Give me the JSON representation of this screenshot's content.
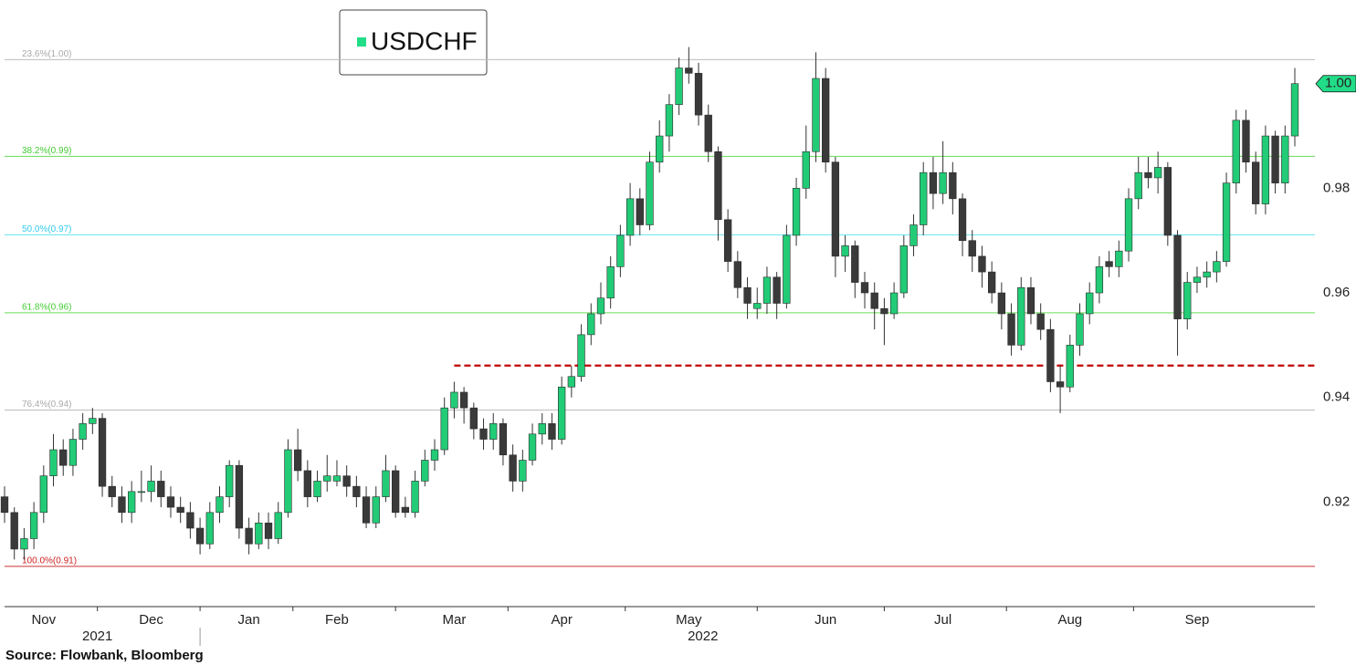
{
  "chart_data": {
    "type": "candlestick",
    "legend_label": "USDCHF",
    "legend_color": "#22dd88",
    "source": "Source: Flowbank, Bloomberg",
    "up_color": "#22cc77",
    "down_color": "#3a3a3a",
    "ylim": [
      0.9,
      1.016
    ],
    "yticks": [
      0.92,
      0.94,
      0.96,
      0.98
    ],
    "xlim": [
      -0.5,
      132.5
    ],
    "x_axis": [
      {
        "year": "2021",
        "ticks": [
          {
            "value": 4,
            "label": "Nov"
          },
          {
            "value": 15,
            "label": "Dec"
          }
        ]
      },
      {
        "year": "2022",
        "ticks": [
          {
            "value": 25,
            "label": "Jan"
          },
          {
            "value": 34,
            "label": "Feb"
          },
          {
            "value": 46,
            "label": "Mar"
          },
          {
            "value": 57,
            "label": "Apr"
          },
          {
            "value": 70,
            "label": "May"
          },
          {
            "value": 84,
            "label": "Jun"
          },
          {
            "value": 96,
            "label": "Jul"
          },
          {
            "value": 109,
            "label": "Aug"
          },
          {
            "value": 122,
            "label": "Sep"
          }
        ]
      }
    ],
    "levels": [
      {
        "label": "23.6%(1.00)",
        "value": 1.0046,
        "color": "#bdbdbd",
        "text_color": "#aaaaaa"
      },
      {
        "label": "38.2%(0.99)",
        "value": 0.9861,
        "color": "#66dd55",
        "text_color": "#44cc33"
      },
      {
        "label": "50.0%(0.97)",
        "value": 0.9711,
        "color": "#66e4f2",
        "text_color": "#33ccee"
      },
      {
        "label": "61.8%(0.96)",
        "value": 0.9562,
        "color": "#66dd55",
        "text_color": "#44cc33"
      },
      {
        "label": "76.4%(0.94)",
        "value": 0.9376,
        "color": "#bdbdbd",
        "text_color": "#aaaaaa"
      },
      {
        "label": "100.0%(0.91)",
        "value": 0.9077,
        "color": "#cc3333",
        "text_color": "#cc2222"
      }
    ],
    "support": {
      "value": 0.9461,
      "start": 46,
      "color": "#c00000"
    },
    "last_price": {
      "value": 1.0,
      "label": "1.00",
      "color": "#22dd88"
    },
    "open": [
      0.921,
      0.918,
      0.911,
      0.913,
      0.918,
      0.925,
      0.93,
      0.927,
      0.932,
      0.935,
      0.936,
      0.923,
      0.921,
      0.918,
      0.922,
      0.922,
      0.924,
      0.921,
      0.919,
      0.918,
      0.915,
      0.912,
      0.918,
      0.921,
      0.927,
      0.915,
      0.912,
      0.916,
      0.913,
      0.918,
      0.93,
      0.926,
      0.921,
      0.924,
      0.924,
      0.925,
      0.923,
      0.921,
      0.916,
      0.921,
      0.926,
      0.919,
      0.918,
      0.924,
      0.928,
      0.93,
      0.938,
      0.941,
      0.938,
      0.934,
      0.932,
      0.935,
      0.929,
      0.924,
      0.928,
      0.933,
      0.935,
      0.932,
      0.942,
      0.944,
      0.952,
      0.956,
      0.959,
      0.965,
      0.971,
      0.978,
      0.973,
      0.985,
      0.99,
      0.996,
      1.003,
      1.002,
      0.994,
      0.987,
      0.974,
      0.966,
      0.961,
      0.957,
      0.958,
      0.963,
      0.958,
      0.971,
      0.98,
      0.987,
      1.001,
      0.985,
      0.967,
      0.969,
      0.962,
      0.96,
      0.957,
      0.956,
      0.96,
      0.969,
      0.973,
      0.983,
      0.979,
      0.983,
      0.978,
      0.97,
      0.967,
      0.964,
      0.96,
      0.956,
      0.95,
      0.961,
      0.956,
      0.953,
      0.943,
      0.942,
      0.95,
      0.956,
      0.96,
      0.966,
      0.965,
      0.968,
      0.978,
      0.983,
      0.982,
      0.984,
      0.971,
      0.955,
      0.962,
      0.963,
      0.964,
      0.966,
      0.981,
      0.993,
      0.985,
      0.977,
      0.99,
      0.981,
      0.99
    ],
    "high": [
      0.923,
      0.919,
      0.915,
      0.92,
      0.927,
      0.933,
      0.932,
      0.934,
      0.937,
      0.938,
      0.937,
      0.925,
      0.923,
      0.924,
      0.926,
      0.927,
      0.926,
      0.923,
      0.921,
      0.92,
      0.917,
      0.92,
      0.923,
      0.928,
      0.928,
      0.917,
      0.918,
      0.918,
      0.92,
      0.932,
      0.934,
      0.928,
      0.926,
      0.929,
      0.928,
      0.927,
      0.925,
      0.923,
      0.923,
      0.929,
      0.927,
      0.921,
      0.926,
      0.93,
      0.932,
      0.94,
      0.943,
      0.942,
      0.939,
      0.936,
      0.937,
      0.936,
      0.931,
      0.93,
      0.935,
      0.937,
      0.937,
      0.944,
      0.946,
      0.954,
      0.958,
      0.962,
      0.967,
      0.973,
      0.981,
      0.98,
      0.987,
      0.993,
      0.998,
      1.005,
      1.007,
      1.004,
      0.996,
      0.988,
      0.976,
      0.968,
      0.963,
      0.961,
      0.965,
      0.964,
      0.973,
      0.982,
      0.992,
      1.006,
      1.003,
      0.986,
      0.971,
      0.97,
      0.964,
      0.962,
      0.959,
      0.962,
      0.971,
      0.975,
      0.985,
      0.986,
      0.989,
      0.985,
      0.979,
      0.972,
      0.969,
      0.966,
      0.962,
      0.958,
      0.963,
      0.963,
      0.958,
      0.955,
      0.946,
      0.952,
      0.958,
      0.962,
      0.967,
      0.968,
      0.97,
      0.98,
      0.986,
      0.986,
      0.987,
      0.985,
      0.972,
      0.964,
      0.965,
      0.966,
      0.968,
      0.983,
      0.995,
      0.995,
      0.987,
      0.992,
      0.991,
      0.992,
      1.003
    ],
    "low": [
      0.916,
      0.909,
      0.909,
      0.911,
      0.916,
      0.923,
      0.925,
      0.925,
      0.93,
      0.933,
      0.921,
      0.919,
      0.916,
      0.916,
      0.92,
      0.92,
      0.919,
      0.917,
      0.916,
      0.913,
      0.91,
      0.911,
      0.916,
      0.919,
      0.913,
      0.91,
      0.911,
      0.911,
      0.912,
      0.917,
      0.924,
      0.919,
      0.92,
      0.922,
      0.923,
      0.921,
      0.919,
      0.915,
      0.915,
      0.92,
      0.917,
      0.917,
      0.917,
      0.923,
      0.926,
      0.929,
      0.936,
      0.935,
      0.932,
      0.93,
      0.93,
      0.927,
      0.922,
      0.922,
      0.927,
      0.931,
      0.93,
      0.931,
      0.94,
      0.943,
      0.95,
      0.954,
      0.957,
      0.963,
      0.969,
      0.971,
      0.972,
      0.983,
      0.987,
      0.994,
      1.0,
      0.992,
      0.985,
      0.97,
      0.964,
      0.959,
      0.955,
      0.955,
      0.956,
      0.955,
      0.957,
      0.969,
      0.978,
      0.985,
      0.983,
      0.963,
      0.964,
      0.959,
      0.957,
      0.953,
      0.95,
      0.955,
      0.959,
      0.967,
      0.971,
      0.976,
      0.977,
      0.975,
      0.967,
      0.964,
      0.961,
      0.958,
      0.953,
      0.948,
      0.949,
      0.954,
      0.951,
      0.941,
      0.937,
      0.941,
      0.948,
      0.954,
      0.958,
      0.963,
      0.963,
      0.966,
      0.976,
      0.98,
      0.979,
      0.969,
      0.948,
      0.953,
      0.96,
      0.961,
      0.962,
      0.965,
      0.979,
      0.983,
      0.975,
      0.975,
      0.979,
      0.979,
      0.988
    ],
    "close": [
      0.918,
      0.911,
      0.913,
      0.918,
      0.925,
      0.93,
      0.927,
      0.932,
      0.935,
      0.936,
      0.923,
      0.921,
      0.918,
      0.922,
      0.922,
      0.924,
      0.921,
      0.919,
      0.918,
      0.915,
      0.912,
      0.918,
      0.921,
      0.927,
      0.915,
      0.912,
      0.916,
      0.913,
      0.918,
      0.93,
      0.926,
      0.921,
      0.924,
      0.925,
      0.925,
      0.923,
      0.921,
      0.916,
      0.921,
      0.926,
      0.918,
      0.918,
      0.924,
      0.928,
      0.93,
      0.938,
      0.941,
      0.938,
      0.934,
      0.932,
      0.935,
      0.929,
      0.924,
      0.928,
      0.933,
      0.935,
      0.932,
      0.942,
      0.944,
      0.952,
      0.956,
      0.959,
      0.965,
      0.971,
      0.978,
      0.973,
      0.985,
      0.99,
      0.996,
      1.003,
      1.002,
      0.994,
      0.987,
      0.974,
      0.966,
      0.961,
      0.958,
      0.958,
      0.963,
      0.958,
      0.971,
      0.98,
      0.987,
      1.001,
      0.985,
      0.967,
      0.969,
      0.962,
      0.96,
      0.957,
      0.956,
      0.96,
      0.969,
      0.973,
      0.983,
      0.979,
      0.983,
      0.978,
      0.97,
      0.967,
      0.964,
      0.96,
      0.956,
      0.95,
      0.961,
      0.956,
      0.953,
      0.943,
      0.942,
      0.95,
      0.956,
      0.96,
      0.965,
      0.965,
      0.968,
      0.978,
      0.983,
      0.982,
      0.984,
      0.971,
      0.955,
      0.962,
      0.963,
      0.964,
      0.966,
      0.981,
      0.993,
      0.985,
      0.977,
      0.99,
      0.981,
      0.99,
      1.0
    ]
  }
}
